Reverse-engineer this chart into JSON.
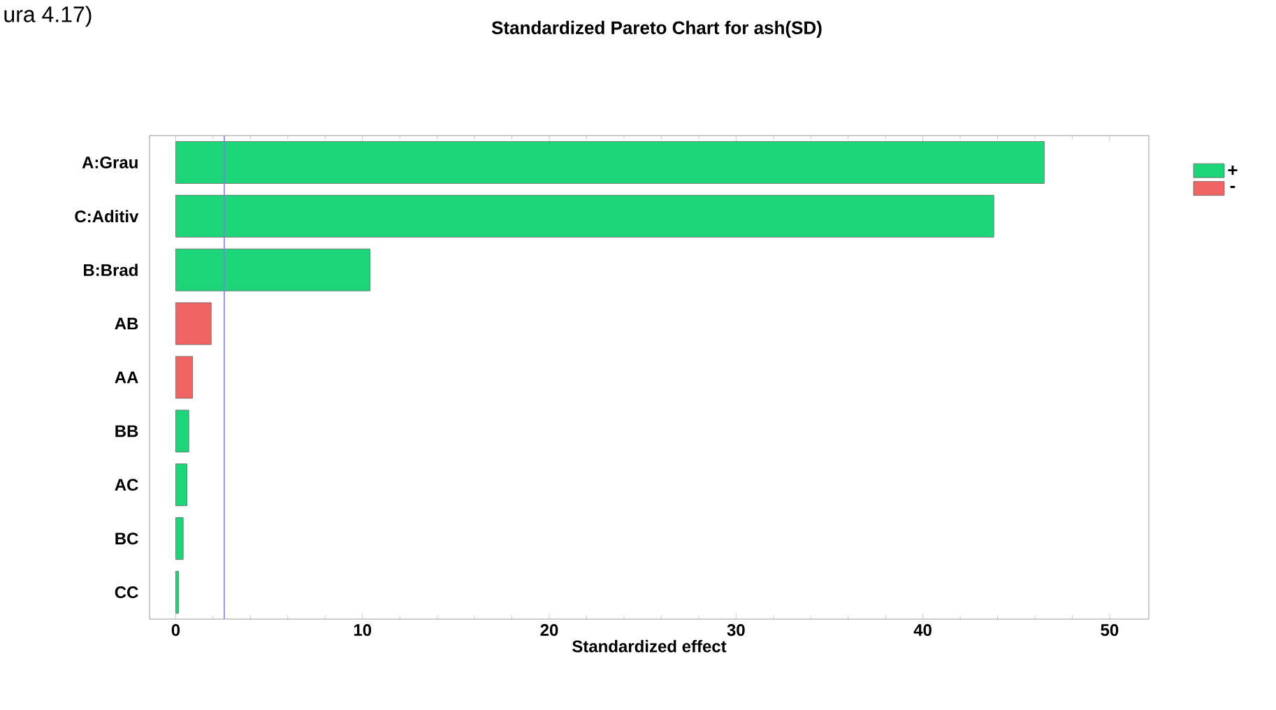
{
  "chart_data": {
    "type": "bar",
    "orientation": "horizontal",
    "title": "Standardized Pareto Chart for ash(SD)",
    "xlabel": "Standardized effect",
    "annotations": [
      "ura 4.17)"
    ],
    "categories": [
      "A:Grau",
      "C:Aditiv",
      "B:Brad",
      "AB",
      "AA",
      "BB",
      "AC",
      "BC",
      "CC"
    ],
    "series": [
      {
        "name": "+",
        "color": "#1ed67a",
        "values": [
          46.5,
          43.8,
          10.4,
          null,
          null,
          0.7,
          0.6,
          0.4,
          0.15
        ]
      },
      {
        "name": "-",
        "color": "#f06464",
        "values": [
          null,
          null,
          null,
          1.9,
          0.9,
          null,
          null,
          null,
          null
        ]
      }
    ],
    "xlim": [
      -1.4,
      52.1
    ],
    "xticks": [
      0,
      10,
      20,
      30,
      40,
      50
    ],
    "ref_lines": [
      {
        "axis": "x",
        "value": 2.6,
        "color": "#8080e0"
      }
    ],
    "legend": "top right",
    "grid": false
  }
}
